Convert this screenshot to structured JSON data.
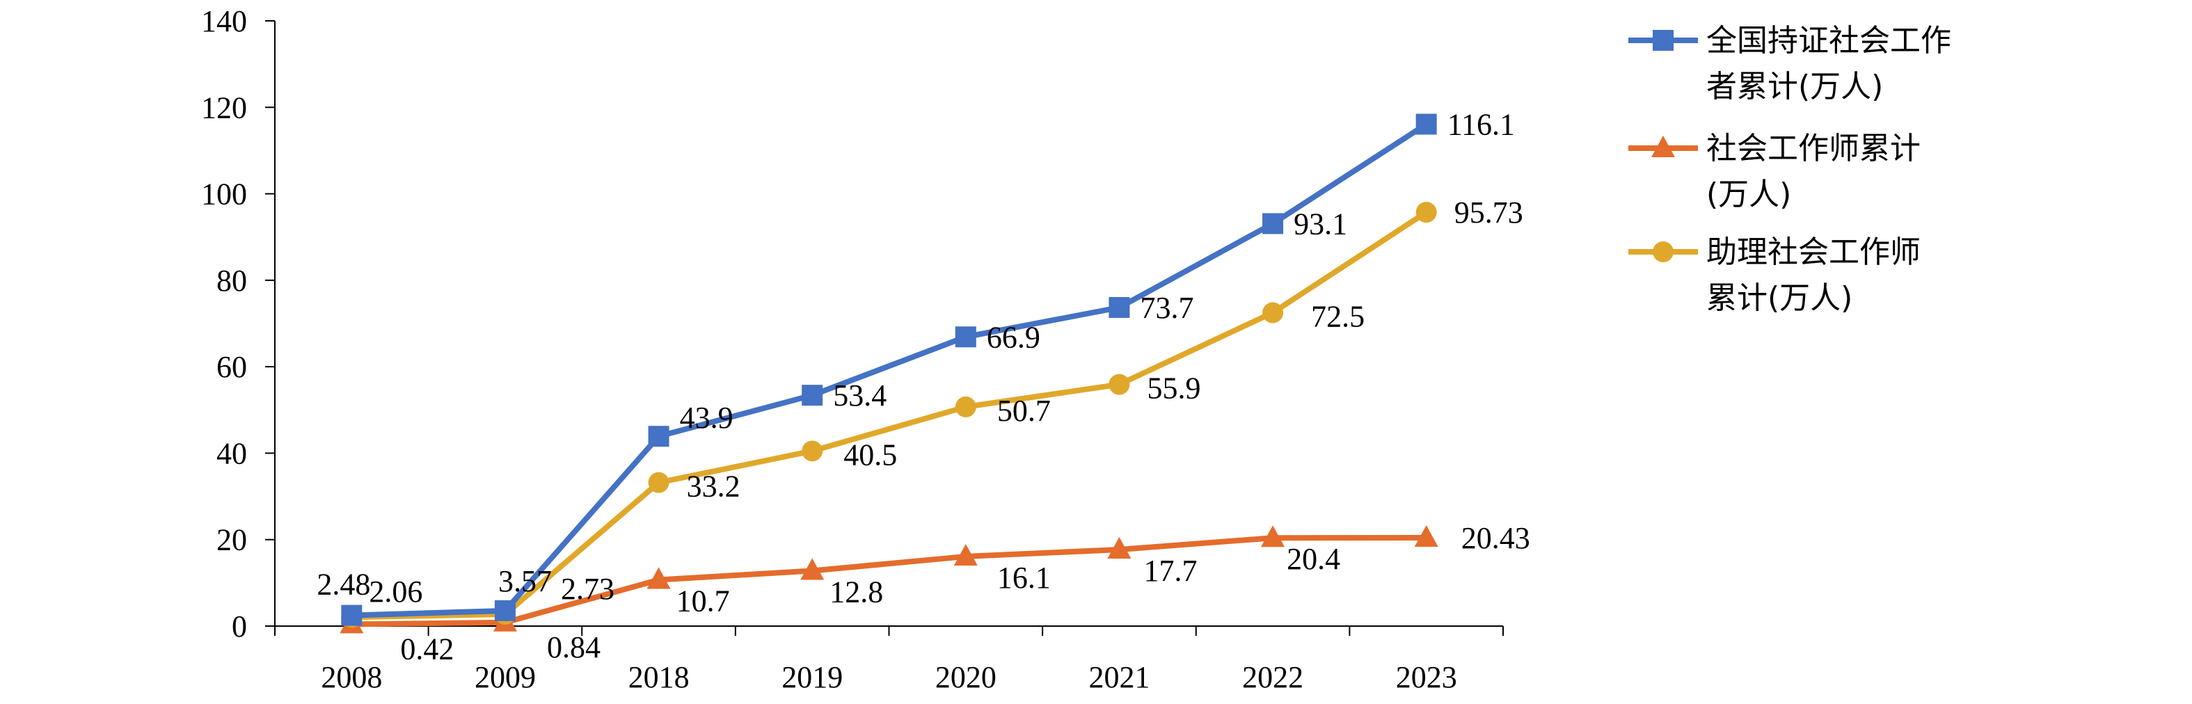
{
  "chart_data": {
    "type": "line",
    "title": "",
    "xlabel": "",
    "ylabel": "",
    "categories": [
      "2008",
      "2009",
      "2018",
      "2019",
      "2020",
      "2021",
      "2022",
      "2023"
    ],
    "ylim": [
      0,
      140
    ],
    "yticks": [
      "0",
      "20",
      "40",
      "60",
      "80",
      "100",
      "120",
      "140"
    ],
    "grid": false,
    "legend_position": "right",
    "series": [
      {
        "name": "全国持证社会工作者累计(万人)",
        "legend_lines": [
          "全国持证社会工作",
          "者累计(万人)"
        ],
        "color": "#4472C4",
        "marker": "square",
        "values": [
          2.48,
          3.57,
          43.9,
          53.4,
          66.9,
          73.7,
          93.1,
          116.1
        ],
        "labels": [
          "2.48",
          "3.57",
          "43.9",
          "53.4",
          "66.9",
          "73.7",
          "93.1",
          "116.1"
        ]
      },
      {
        "name": "社会工作师累计(万人)",
        "legend_lines": [
          "社会工作师累计",
          "(万人)"
        ],
        "color": "#E46C2C",
        "marker": "triangle",
        "values": [
          0.42,
          0.84,
          10.7,
          12.8,
          16.1,
          17.7,
          20.4,
          20.43
        ],
        "labels": [
          "0.42",
          "0.84",
          "10.7",
          "12.8",
          "16.1",
          "17.7",
          "20.4",
          "20.43"
        ]
      },
      {
        "name": "助理社会工作师累计(万人)",
        "legend_lines": [
          "助理社会工作师",
          "累计(万人)"
        ],
        "color": "#E0A82A",
        "marker": "circle",
        "values": [
          2.06,
          2.73,
          33.2,
          40.5,
          50.7,
          55.9,
          72.5,
          95.73
        ],
        "labels": [
          "2.06",
          "2.73",
          "33.2",
          "40.5",
          "50.7",
          "55.9",
          "72.5",
          "95.73"
        ]
      }
    ]
  }
}
